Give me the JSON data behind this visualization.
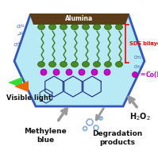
{
  "hex_fill_color": "#b8eaf5",
  "hex_edge_color": "#3355bb",
  "alumina_color": "#5c3d1a",
  "alumina_label": "Alumina",
  "sds_head_color": "#4a8a20",
  "sds_chain_color": "#3a7a18",
  "co_color": "#cc00cc",
  "co_label": "Co(II)",
  "co_label_color": "#cc00cc",
  "sds_bilayer_label": "SDS bilayer",
  "sds_bilayer_color": "red",
  "methylene_blue_label": "Methylene\nblue",
  "visible_light_label": "Visible light",
  "degradation_label": "Degradation\nproducts",
  "h2o2_label": "H$_2$O$_2$",
  "mb_ring_color": "#1a237e",
  "arrow_color": "#999999",
  "light_green": "#33dd33",
  "light_orange": "#ee6600",
  "bubble_color": "#88aadd",
  "text_color_black": "#111111",
  "figsize": [
    1.99,
    1.89
  ],
  "dpi": 100
}
